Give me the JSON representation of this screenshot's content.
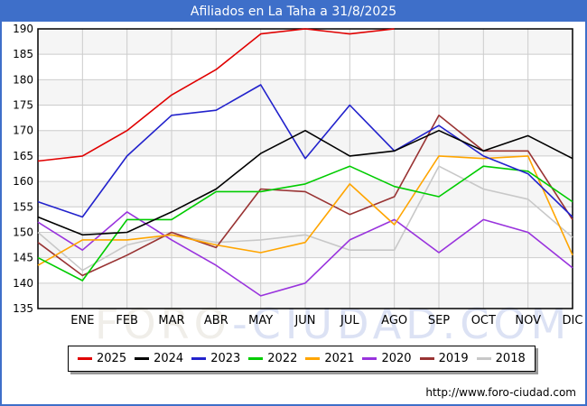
{
  "colors": {
    "frame_blue": "#3e6fc9",
    "title_text": "#ffffff",
    "plot_border": "#000000",
    "grid": "#cccccc",
    "band": "#f5f5f5",
    "axis_text": "#000000",
    "watermark_foro": "#f0eee9",
    "watermark_ciudad": "#dce2f4",
    "legend_border": "#000000",
    "legend_shadow": "#999999",
    "url_text": "#000000"
  },
  "watermark": {
    "part1": "FORO",
    "part2": "-CIUDAD.COM"
  },
  "footer": {
    "url": "http://www.foro-ciudad.com"
  },
  "chart_data": {
    "type": "line",
    "title": "Afiliados en La Taha a 31/8/2025",
    "x_categories": [
      "ENE",
      "FEB",
      "MAR",
      "ABR",
      "MAY",
      "JUN",
      "JUL",
      "AGO",
      "SEP",
      "OCT",
      "NOV",
      "DIC"
    ],
    "ylim": [
      135,
      190
    ],
    "yticks": [
      190,
      185,
      180,
      175,
      170,
      165,
      160,
      155,
      150,
      145,
      140,
      135
    ],
    "grid": true,
    "legend_position": "bottom",
    "first_point_on_left_axis": true,
    "series": [
      {
        "name": "2025",
        "color": "#e00000",
        "values": [
          164,
          165,
          170,
          177,
          182,
          189,
          190,
          189,
          190
        ]
      },
      {
        "name": "2024",
        "color": "#000000",
        "values": [
          153,
          149.5,
          150,
          154,
          158.5,
          165.5,
          170,
          165,
          166,
          170,
          166,
          169,
          164.5
        ]
      },
      {
        "name": "2023",
        "color": "#2222cc",
        "values": [
          156,
          153,
          165,
          173,
          174,
          179,
          164.5,
          175,
          166,
          171,
          165,
          161.5,
          153
        ]
      },
      {
        "name": "2022",
        "color": "#00cc00",
        "values": [
          145,
          140.5,
          152.5,
          152.5,
          158,
          158,
          159.5,
          163,
          159,
          157,
          163,
          162,
          156
        ]
      },
      {
        "name": "2021",
        "color": "#ffa500",
        "values": [
          143.5,
          148.5,
          148.5,
          149.5,
          147.5,
          146,
          148,
          159.5,
          151.5,
          165,
          164.5,
          165,
          145.5
        ]
      },
      {
        "name": "2020",
        "color": "#9933dd",
        "values": [
          152,
          146.5,
          154,
          148.5,
          143.5,
          137.5,
          140,
          148.5,
          152.5,
          146,
          152.5,
          150,
          143
        ]
      },
      {
        "name": "2019",
        "color": "#993333",
        "values": [
          148,
          141.5,
          145.5,
          150,
          147,
          158.5,
          158,
          153.5,
          157,
          173,
          166,
          166,
          152.5
        ]
      },
      {
        "name": "2018",
        "color": "#c8c8c8",
        "values": [
          150,
          142.5,
          147.5,
          149.5,
          148,
          148.5,
          149.5,
          146.5,
          146.5,
          163,
          158.5,
          156.5,
          149
        ]
      }
    ]
  }
}
